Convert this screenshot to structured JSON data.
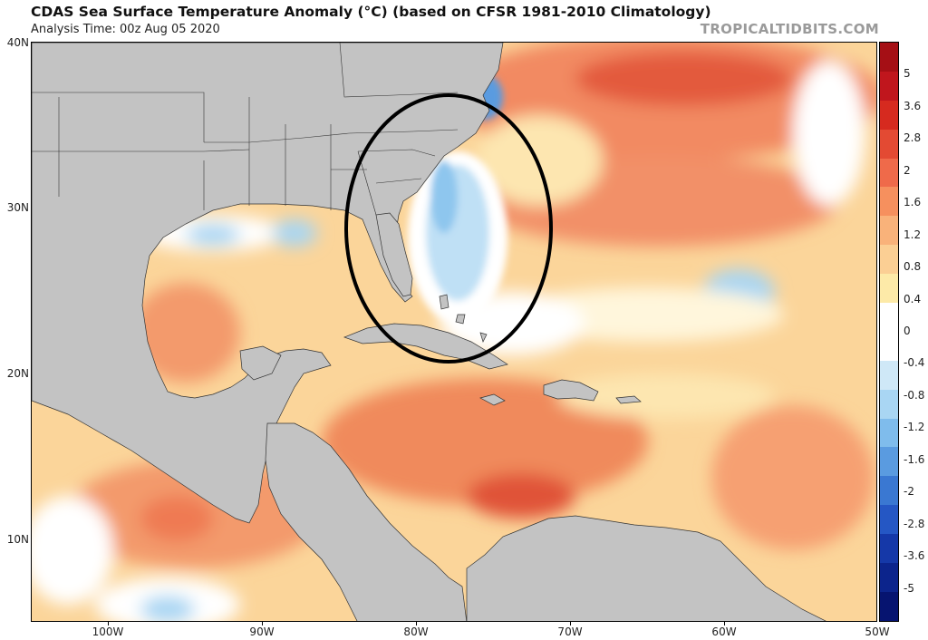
{
  "header": {
    "title": "CDAS Sea Surface Temperature Anomaly (°C) (based on CFSR 1981-2010 Climatology)",
    "analysis_time": "Analysis Time: 00z Aug 05 2020",
    "brand": "TROPICALTIDBITS.COM"
  },
  "axes": {
    "lat_labels": [
      "40N",
      "30N",
      "20N",
      "10N"
    ],
    "lon_labels": [
      "100W",
      "90W",
      "80W",
      "70W",
      "60W",
      "50W"
    ]
  },
  "colorbar": {
    "labels": [
      "5",
      "3.6",
      "2.8",
      "2",
      "1.6",
      "1.2",
      "0.8",
      "0.4",
      "0",
      "-0.4",
      "-0.8",
      "-1.2",
      "-1.6",
      "-2",
      "-2.8",
      "-3.6",
      "-5"
    ],
    "colors": [
      "#a50f15",
      "#c0161d",
      "#d62a1f",
      "#e34a33",
      "#ef6a4a",
      "#f6905e",
      "#f9b27a",
      "#fbcf94",
      "#fdeaa8",
      "#ffffff",
      "#ffffff",
      "#cfe8f7",
      "#a9d6f3",
      "#7fbcec",
      "#5a9be0",
      "#3a78d2",
      "#2557c4",
      "#1538a8",
      "#0c248c",
      "#061470"
    ]
  },
  "colors": {
    "land": "#c3c3c3",
    "circle": "#000000"
  }
}
